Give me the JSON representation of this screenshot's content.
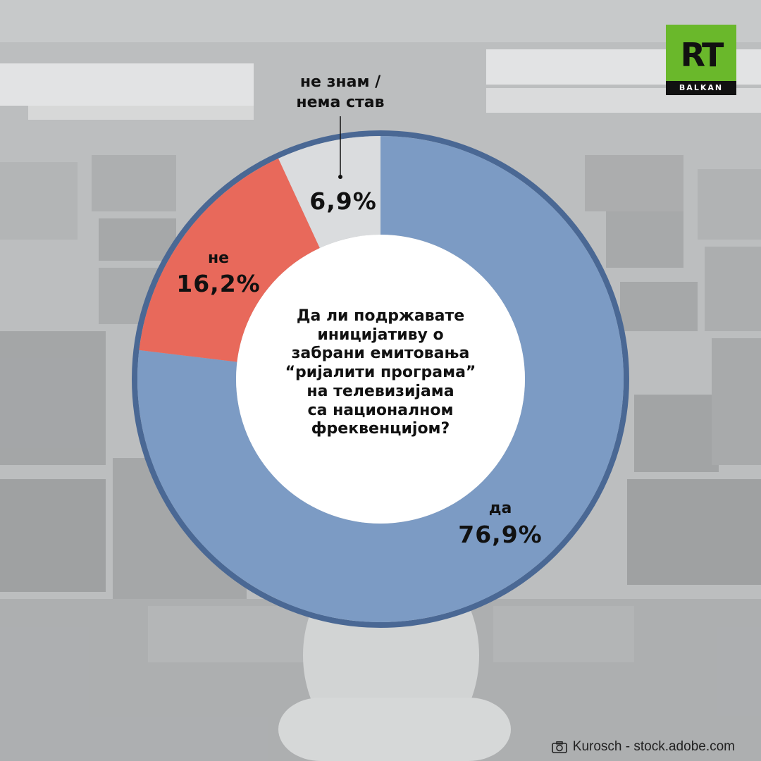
{
  "chart_data": {
    "type": "pie",
    "style": "donut",
    "title_lines": [
      "Да ли подржавате",
      "иницијативу о",
      "забрани емитовања",
      "“ријалити програма”",
      "на телевизијама",
      "са националном",
      "фреквенцијом?"
    ],
    "slices": [
      {
        "label": "да",
        "value": 76.9,
        "value_label": "76,9%",
        "color": "#7c9bc4"
      },
      {
        "label": "не",
        "value": 16.2,
        "value_label": "16,2%",
        "color": "#e8695b"
      },
      {
        "label": "не знам / нема став",
        "label_lines": [
          "не знам /",
          "нема став"
        ],
        "value": 6.9,
        "value_label": "6,9%",
        "color": "#dadcde"
      }
    ],
    "outline_color": "#4a6894"
  },
  "logo": {
    "main": "RT",
    "sub": "BALKAN",
    "color": "#6ab82b"
  },
  "credit": {
    "text": "Kurosch - stock.adobe.com",
    "icon": "camera-icon"
  }
}
